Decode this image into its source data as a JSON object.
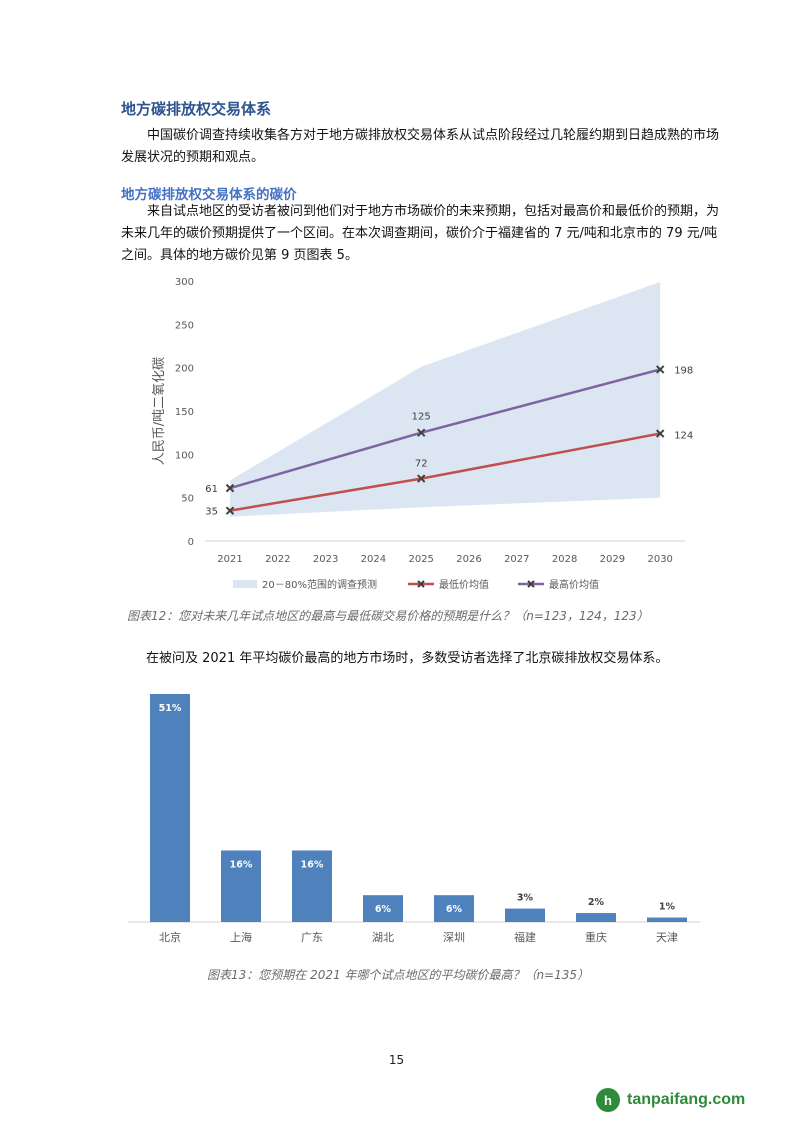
{
  "section": {
    "heading": "地方碳排放权交易体系",
    "intro": "中国碳价调查持续收集各方对于地方碳排放权交易体系从试点阶段经过几轮履约期到日趋成熟的市场发展状况的预期和观点。",
    "subheading": "地方碳排放权交易体系的碳价",
    "body": "来自试点地区的受访者被问到他们对于地方市场碳价的未来预期，包括对最高价和最低价的预期，为未来几年的碳价预期提供了一个区间。在本次调查期间，碳价介于福建省的 7 元/吨和北京市的 79 元/吨之间。具体的地方碳价见第 9 页图表 5。"
  },
  "figure12": {
    "caption": "图表12：您对未来几年试点地区的最高与最低碳交易价格的预期是什么？（n=123，124，123）"
  },
  "transition_text": "在被问及 2021 年平均碳价最高的地方市场时，多数受访者选择了北京碳排放权交易体系。",
  "figure13": {
    "caption": "图表13：您预期在 2021 年哪个试点地区的平均碳价最高？（n=135）"
  },
  "page_number": "15",
  "watermark": {
    "mark": "h",
    "text": "tanpaifang.com"
  },
  "colors": {
    "band": "#dce6f3",
    "low_line": "#c0504d",
    "high_line": "#8064a2",
    "bar": "#4f81bd",
    "heading": "#2e5490",
    "subheading": "#4472c4"
  },
  "chart_data": [
    {
      "type": "line",
      "ylabel": "人民币/吨二氧化碳",
      "xlabel": "",
      "ylim": [
        0,
        300
      ],
      "yticks": [
        0,
        50,
        100,
        150,
        200,
        250,
        300
      ],
      "x": [
        "2021",
        "2022",
        "2023",
        "2024",
        "2025",
        "2026",
        "2027",
        "2028",
        "2029",
        "2030"
      ],
      "band": {
        "name": "20－80%范围的调查预测",
        "points": [
          {
            "x": "2021",
            "low": 28,
            "high": 70
          },
          {
            "x": "2025",
            "low": 39,
            "high": 201
          },
          {
            "x": "2030",
            "low": 50,
            "high": 299
          }
        ]
      },
      "series": [
        {
          "name": "最低价均值",
          "color": "#c0504d",
          "points": [
            {
              "x": "2021",
              "y": 35
            },
            {
              "x": "2025",
              "y": 72
            },
            {
              "x": "2030",
              "y": 124
            }
          ]
        },
        {
          "name": "最高价均值",
          "color": "#8064a2",
          "points": [
            {
              "x": "2021",
              "y": 61
            },
            {
              "x": "2025",
              "y": 125
            },
            {
              "x": "2030",
              "y": 198
            }
          ]
        }
      ],
      "grid": false,
      "legend": "bottom"
    },
    {
      "type": "bar",
      "categories": [
        "北京",
        "上海",
        "广东",
        "湖北",
        "深圳",
        "福建",
        "重庆",
        "天津"
      ],
      "values": [
        51,
        16,
        16,
        6,
        6,
        3,
        2,
        1
      ],
      "labels": [
        "51%",
        "16%",
        "16%",
        "6%",
        "6%",
        "3%",
        "2%",
        "1%"
      ],
      "ylim": [
        0,
        51
      ],
      "grid": false
    }
  ]
}
